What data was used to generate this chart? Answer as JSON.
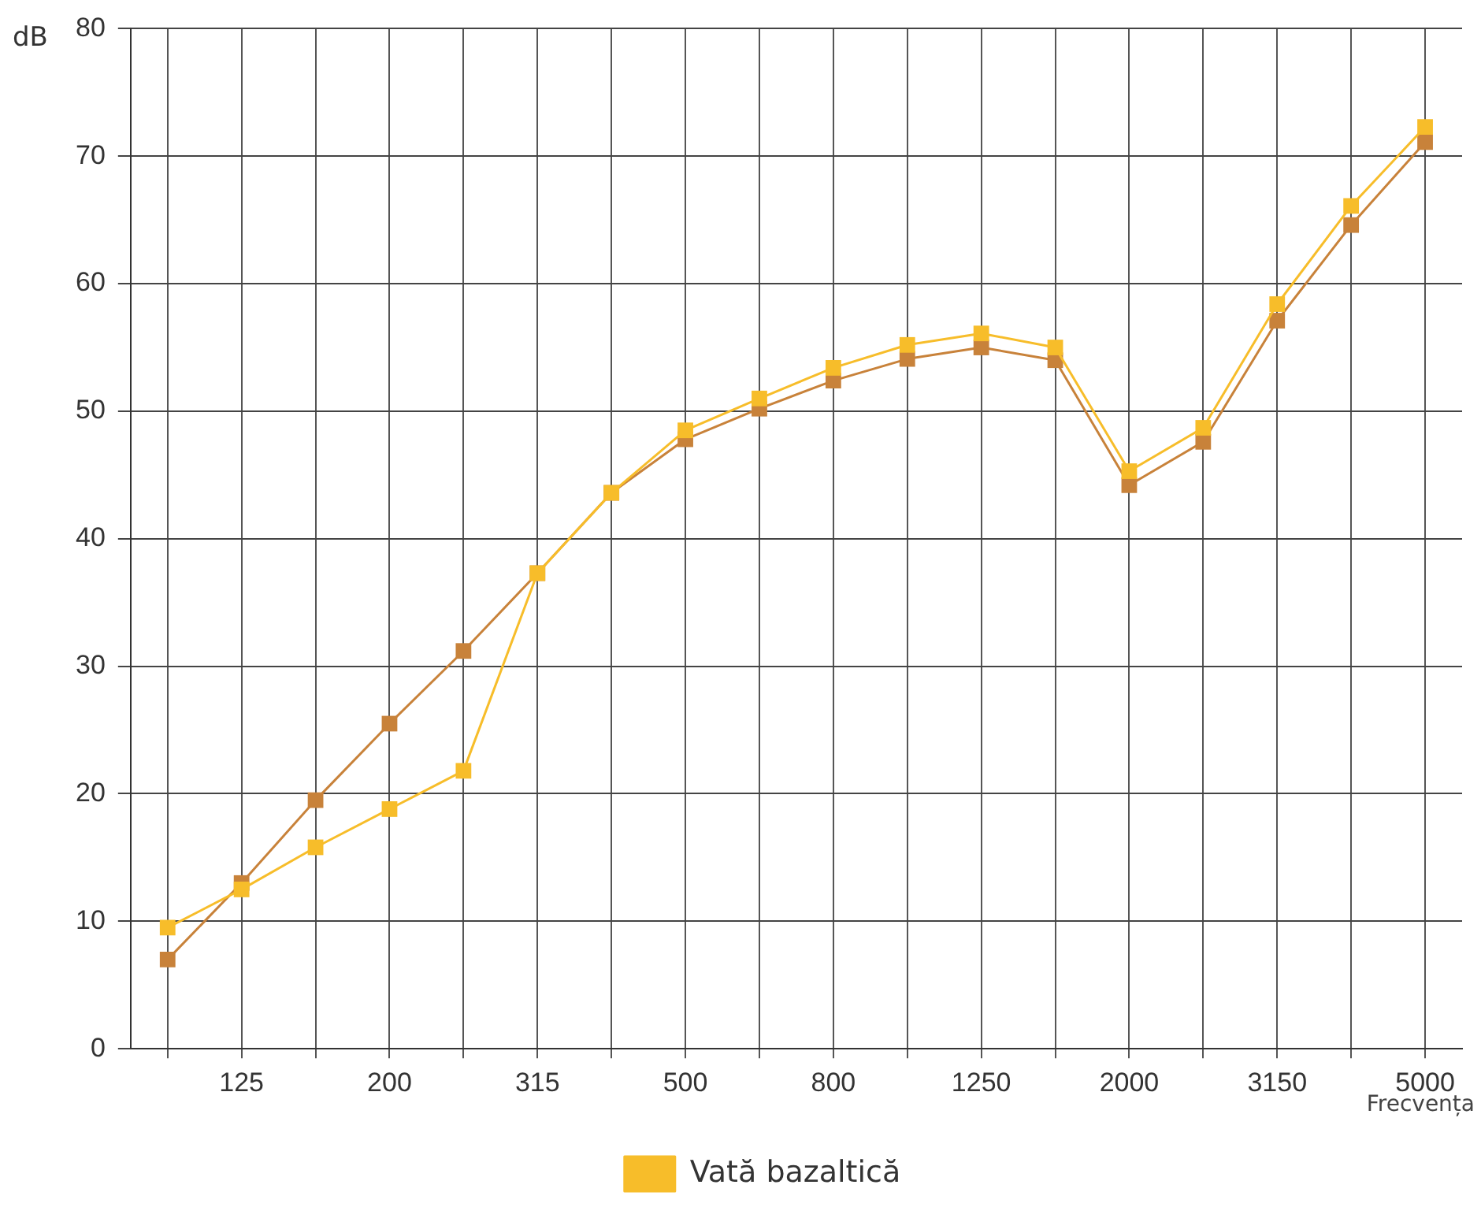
{
  "chart_data": {
    "type": "line",
    "ylabel": "dB",
    "xlabel": "Frecvența",
    "categories": [
      null,
      "125",
      null,
      "200",
      null,
      "315",
      null,
      "500",
      null,
      "800",
      null,
      "1250",
      null,
      "2000",
      null,
      "3150",
      null,
      "5000"
    ],
    "series": [
      {
        "color": "#c8823a",
        "values": [
          7,
          13,
          19.5,
          25.5,
          31.2,
          37.3,
          43.6,
          47.8,
          50.2,
          52.4,
          54.1,
          55,
          54,
          44.2,
          47.6,
          57.1,
          64.6,
          71.1
        ]
      },
      {
        "name": "Vată bazaltică",
        "color": "#f7bd2a",
        "values": [
          9.5,
          12.5,
          15.8,
          18.8,
          21.8,
          37.3,
          43.6,
          48.5,
          51,
          53.4,
          55.2,
          56.1,
          55,
          45.3,
          48.7,
          58.4,
          66.1,
          72.3
        ]
      }
    ],
    "ylim": [
      0,
      80
    ],
    "yticks": [
      0,
      10,
      20,
      30,
      40,
      50,
      60,
      70,
      80
    ],
    "grid": true,
    "legend": "bottom",
    "marker": "square",
    "line_style": "solid"
  }
}
